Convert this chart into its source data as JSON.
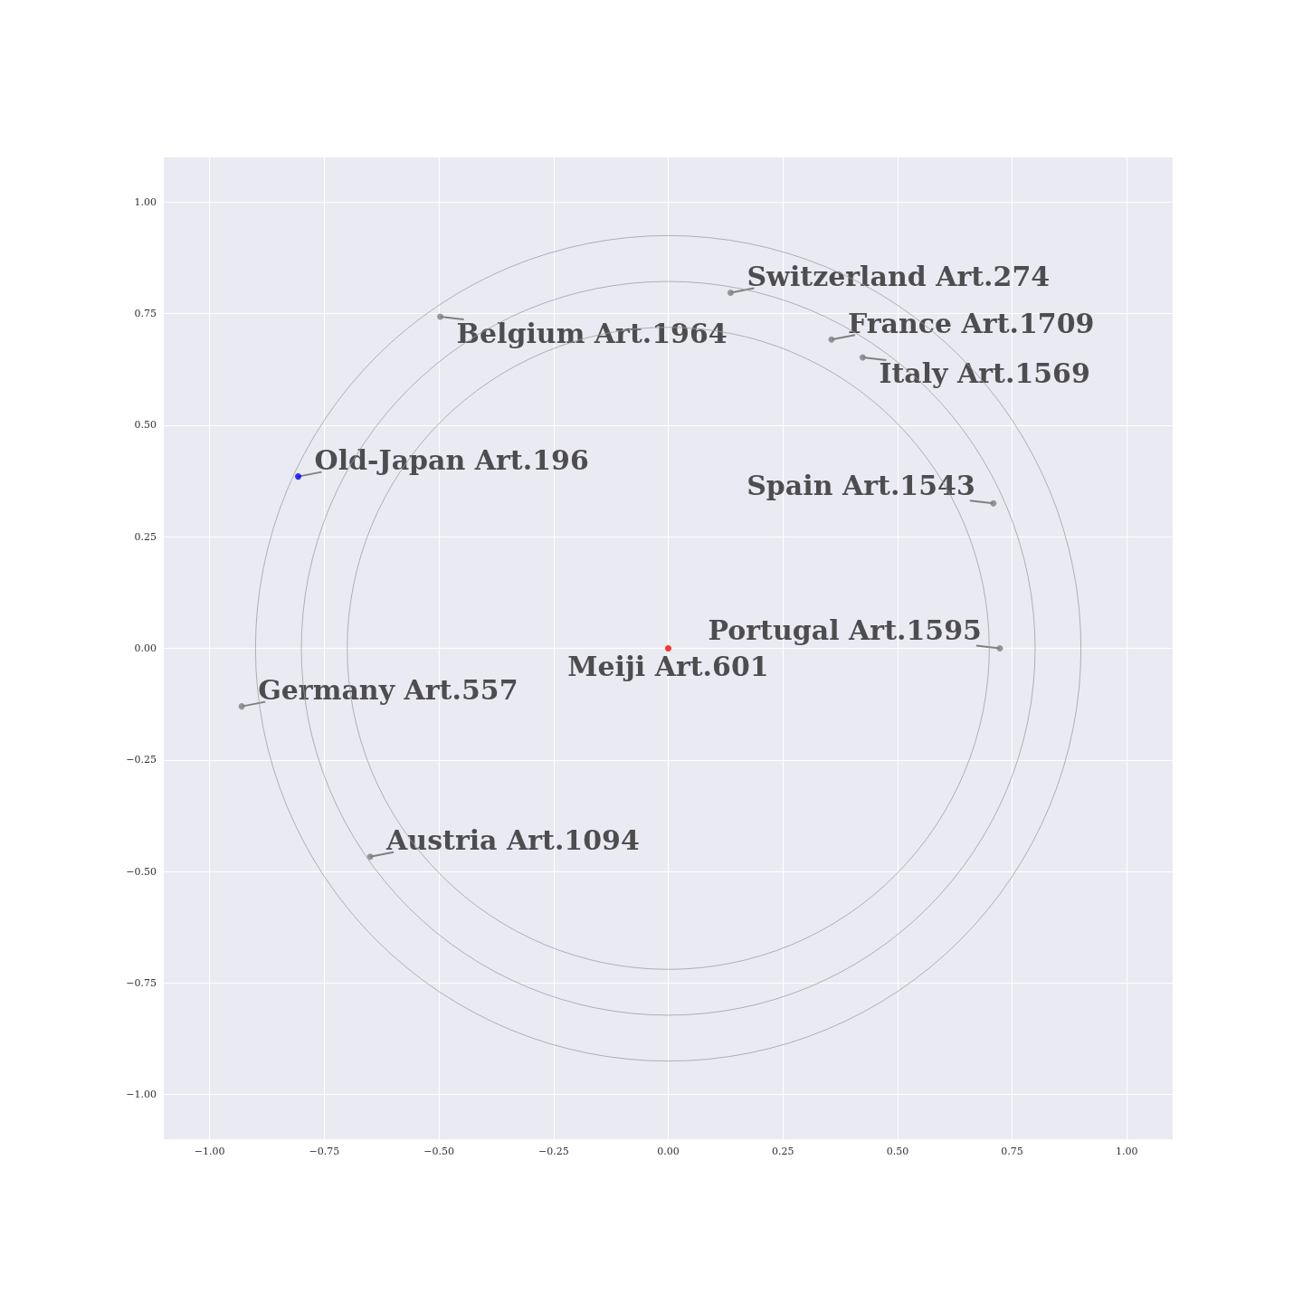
{
  "chart_data": {
    "type": "scatter",
    "xlim": [
      -1.1,
      1.1
    ],
    "ylim": [
      -1.1,
      1.1
    ],
    "xticks": [
      {
        "value": -1,
        "label": "−1.00"
      },
      {
        "value": -0.75,
        "label": "−0.75"
      },
      {
        "value": -0.5,
        "label": "−0.50"
      },
      {
        "value": -0.25,
        "label": "−0.25"
      },
      {
        "value": 0,
        "label": "0.00"
      },
      {
        "value": 0.25,
        "label": "0.25"
      },
      {
        "value": 0.5,
        "label": "0.50"
      },
      {
        "value": 0.75,
        "label": "0.75"
      },
      {
        "value": 1,
        "label": "1.00"
      }
    ],
    "yticks": [
      {
        "value": -1,
        "label": "−1.00"
      },
      {
        "value": -0.75,
        "label": "−0.75"
      },
      {
        "value": -0.5,
        "label": "−0.50"
      },
      {
        "value": -0.25,
        "label": "−0.25"
      },
      {
        "value": 0,
        "label": "0.00"
      },
      {
        "value": 0.25,
        "label": "0.25"
      },
      {
        "value": 0.5,
        "label": "0.50"
      },
      {
        "value": 0.75,
        "label": "0.75"
      },
      {
        "value": 1,
        "label": "1.00"
      }
    ],
    "grid": true,
    "marker": "circle",
    "series": [
      {
        "x": [
          0,
          -0.807,
          0.136,
          -0.497,
          0.356,
          0.424,
          0.709,
          0.723,
          -0.93,
          -0.65
        ],
        "values": [
          0,
          0.385,
          0.797,
          0.743,
          0.692,
          0.652,
          0.325,
          0.0,
          -0.13,
          -0.467
        ],
        "colors": [
          "#ff0000",
          "#0000ff",
          "#808080",
          "#808080",
          "#808080",
          "#808080",
          "#808080",
          "#808080",
          "#808080",
          "#808080"
        ]
      }
    ],
    "annotations": [
      {
        "text": "Meiji Art.601",
        "x": 0,
        "y": 0
      },
      {
        "text": "Old-Japan Art.196",
        "x": -0.807,
        "y": 0.385
      },
      {
        "text": "Switzerland Art.274",
        "x": 0.136,
        "y": 0.797
      },
      {
        "text": "Belgium Art.1964",
        "x": -0.497,
        "y": 0.743
      },
      {
        "text": "France Art.1709",
        "x": 0.356,
        "y": 0.692
      },
      {
        "text": "Italy Art.1569",
        "x": 0.424,
        "y": 0.652
      },
      {
        "text": "Spain Art.1543",
        "x": 0.709,
        "y": 0.325
      },
      {
        "text": "Portugal Art.1595",
        "x": 0.723,
        "y": 0.0
      },
      {
        "text": "Germany Art.557",
        "x": -0.93,
        "y": -0.13
      },
      {
        "text": "Austria Art.1094",
        "x": -0.65,
        "y": -0.467
      }
    ]
  }
}
